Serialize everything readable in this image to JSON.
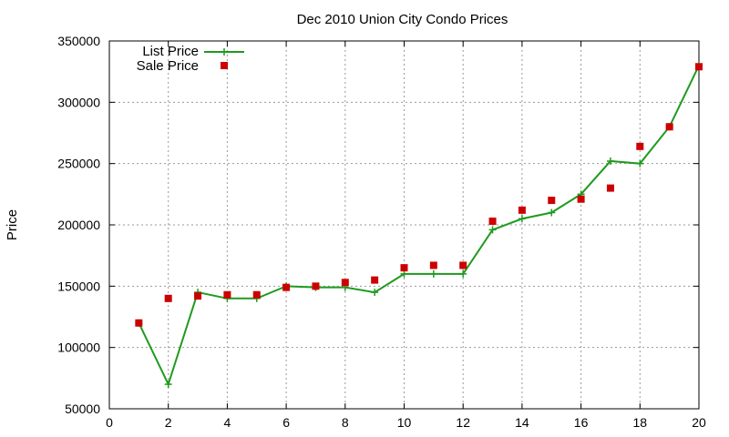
{
  "chart_data": {
    "type": "line",
    "title": "Dec 2010 Union City Condo Prices",
    "xlabel": "",
    "ylabel": "Price",
    "xlim": [
      0,
      20
    ],
    "ylim": [
      50000,
      350000
    ],
    "x_ticks": [
      0,
      2,
      4,
      6,
      8,
      10,
      12,
      14,
      16,
      18,
      20
    ],
    "y_ticks": [
      50000,
      100000,
      150000,
      200000,
      250000,
      300000,
      350000
    ],
    "grid": true,
    "legend_position": "top-left",
    "series": [
      {
        "name": "List Price",
        "style": "line-with-plus-markers",
        "color": "#1f9a1f",
        "x": [
          1,
          2,
          3,
          4,
          5,
          6,
          7,
          8,
          9,
          10,
          11,
          12,
          13,
          14,
          15,
          16,
          17,
          18,
          19,
          20
        ],
        "y": [
          120000,
          70000,
          145000,
          140000,
          140000,
          150000,
          149000,
          149000,
          145000,
          160000,
          160000,
          160000,
          196000,
          205000,
          210000,
          225000,
          252000,
          250000,
          280000,
          330000
        ]
      },
      {
        "name": "Sale Price",
        "style": "square-markers",
        "color": "#cc0000",
        "x": [
          1,
          2,
          3,
          4,
          5,
          6,
          7,
          8,
          9,
          10,
          11,
          12,
          13,
          14,
          15,
          16,
          17,
          18,
          19,
          20
        ],
        "y": [
          120000,
          140000,
          142000,
          143000,
          143000,
          149000,
          150000,
          153000,
          155000,
          165000,
          167000,
          167000,
          203000,
          212000,
          220000,
          221000,
          230000,
          264000,
          280000,
          329000
        ]
      }
    ]
  }
}
